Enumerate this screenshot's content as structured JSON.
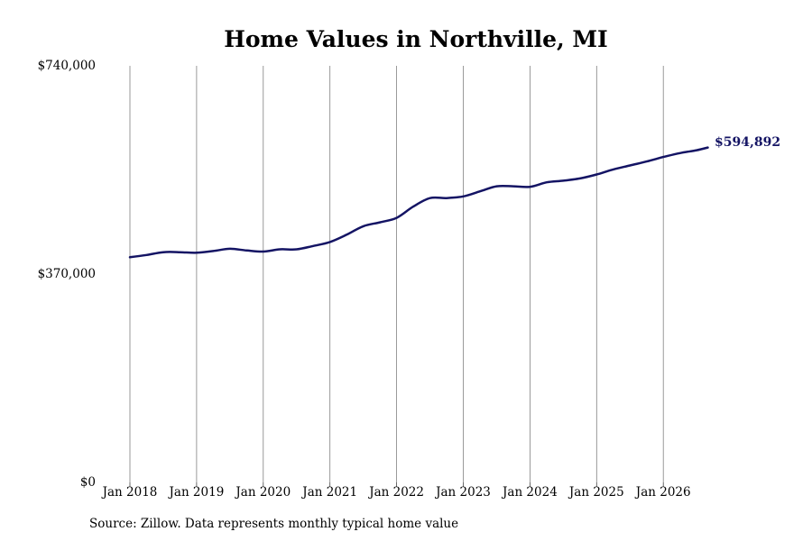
{
  "chart_data": {
    "type": "line",
    "title": "Home Values in Northville, MI",
    "xlabel": "",
    "ylabel": "",
    "ylim": [
      0,
      740000
    ],
    "x_ticks": [
      "Jan 2018",
      "Jan 2019",
      "Jan 2020",
      "Jan 2021",
      "Jan 2022",
      "Jan 2023",
      "Jan 2024",
      "Jan 2025",
      "Jan 2026"
    ],
    "y_ticks": [
      {
        "value": 0,
        "label": "$0"
      },
      {
        "value": 370000,
        "label": "$370,000"
      },
      {
        "value": 740000,
        "label": "$740,000"
      }
    ],
    "grid": {
      "vertical": true,
      "horizontal": false
    },
    "end_label": "$594,892",
    "colors": {
      "line": "#141464",
      "grid": "#808080",
      "end_label": "#141464"
    },
    "series": [
      {
        "x": [
          "2018-01",
          "2018-04",
          "2018-07",
          "2018-10",
          "2019-01",
          "2019-04",
          "2019-07",
          "2019-10",
          "2020-01",
          "2020-04",
          "2020-07",
          "2020-10",
          "2021-01",
          "2021-04",
          "2021-07",
          "2021-10",
          "2022-01",
          "2022-04",
          "2022-07",
          "2022-10",
          "2023-01",
          "2023-04",
          "2023-07",
          "2023-10",
          "2024-01",
          "2024-04",
          "2024-07",
          "2024-10",
          "2025-01",
          "2025-04",
          "2025-07",
          "2025-10",
          "2026-01",
          "2026-04",
          "2026-07",
          "2026-09"
        ],
        "values": [
          400000,
          404000,
          409000,
          409000,
          408000,
          411000,
          415000,
          412000,
          410000,
          414000,
          414000,
          420000,
          427000,
          440000,
          455000,
          462000,
          470000,
          490000,
          505000,
          505000,
          508000,
          517000,
          526000,
          526000,
          525000,
          533000,
          536000,
          540000,
          547000,
          556000,
          563000,
          570000,
          578000,
          585000,
          590000,
          594892
        ]
      }
    ]
  },
  "footer": {
    "source": "Source: Zillow. Data represents monthly typical home value"
  }
}
